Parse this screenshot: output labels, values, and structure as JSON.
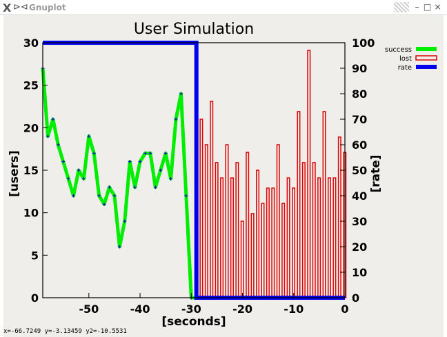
{
  "window": {
    "app_icon": "x-logo-icon",
    "pin_icon": "pin-icon",
    "title": "Gnuplot",
    "buttons": {
      "minimize": "–",
      "maximize": "□",
      "close": "×"
    }
  },
  "status_bar": {
    "coords": "x=-66.7249 y=-3.13459 y2=-10.5531"
  },
  "chart_data": {
    "type": "line",
    "title": "User Simulation",
    "xlabel": "[seconds]",
    "ylabel": "[users]",
    "y2label": "[rate]",
    "xlim": [
      -59,
      0
    ],
    "ylim": [
      0,
      30
    ],
    "y2lim": [
      0,
      100
    ],
    "xticks": [
      -50,
      -40,
      -30,
      -20,
      -10,
      0
    ],
    "yticks": [
      0,
      5,
      10,
      15,
      20,
      25,
      30
    ],
    "y2ticks": [
      0,
      10,
      20,
      30,
      40,
      50,
      60,
      70,
      80,
      90,
      100
    ],
    "grid": false,
    "legend_position": "outside top-right",
    "colors": {
      "success": "#00ee00",
      "lost": "#dd0000",
      "rate": "#0000ee",
      "points": "#0000cc"
    },
    "series": [
      {
        "name": "success",
        "axis": "y",
        "style": "line",
        "x": [
          -59,
          -58,
          -57,
          -56,
          -55,
          -54,
          -53,
          -52,
          -51,
          -50,
          -49,
          -48,
          -47,
          -46,
          -45,
          -44,
          -43,
          -42,
          -41,
          -40,
          -39,
          -38,
          -37,
          -36,
          -35,
          -34,
          -33,
          -32,
          -31,
          -30,
          -29
        ],
        "values": [
          27,
          19,
          21,
          18,
          16,
          14,
          12,
          15,
          14,
          19,
          17,
          12,
          11,
          13,
          12,
          6,
          9,
          16,
          13,
          16,
          17,
          17,
          13,
          15,
          17,
          14,
          21,
          24,
          12,
          0,
          0
        ]
      },
      {
        "name": "lost",
        "axis": "y2",
        "style": "impulse",
        "x": [
          -29,
          -28,
          -27,
          -26,
          -25,
          -24,
          -23,
          -22,
          -21,
          -20,
          -19,
          -18,
          -17,
          -16,
          -15,
          -14,
          -13,
          -12,
          -11,
          -10,
          -9,
          -8,
          -7,
          -6,
          -5,
          -4,
          -3,
          -2,
          -1,
          0
        ],
        "values": [
          31,
          70,
          60,
          77,
          53,
          47,
          60,
          47,
          53,
          30,
          57,
          33,
          50,
          37,
          43,
          43,
          60,
          37,
          47,
          43,
          73,
          53,
          97,
          53,
          47,
          73,
          47,
          47,
          63,
          57
        ]
      },
      {
        "name": "rate",
        "axis": "y2",
        "style": "line",
        "x": [
          -59,
          -29,
          -29,
          0
        ],
        "values": [
          100,
          100,
          0,
          0
        ]
      }
    ]
  }
}
